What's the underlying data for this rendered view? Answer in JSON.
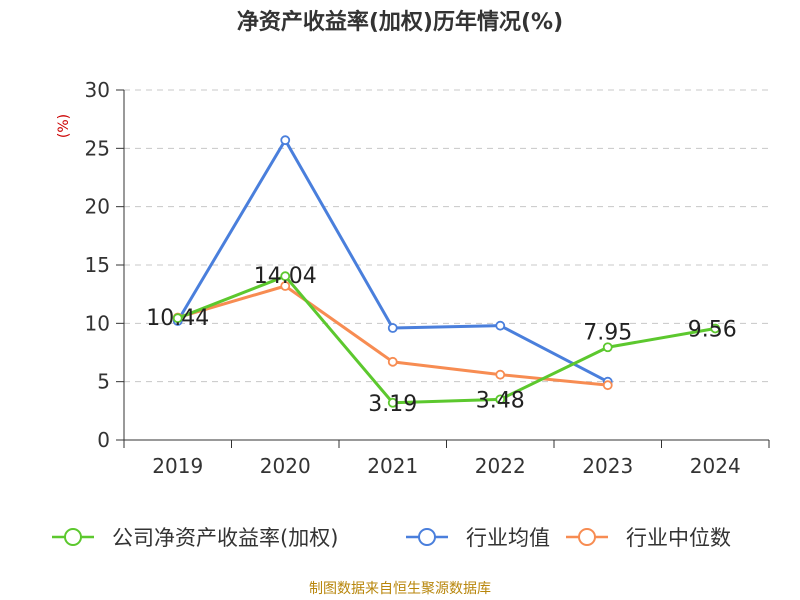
{
  "title": "净资产收益率(加权)历年情况(%)",
  "source": "制图数据来自恒生聚源数据库",
  "colors": {
    "company": "#5cc82e",
    "industry_avg": "#4a7fdc",
    "industry_median": "#f78c52",
    "y_unit": "#cc0000",
    "source": "#b8860b"
  },
  "chart_data": {
    "type": "line",
    "title": "净资产收益率(加权)历年情况(%)",
    "ylabel": "(%)",
    "xlabel": "",
    "categories": [
      "2019",
      "2020",
      "2021",
      "2022",
      "2023",
      "2024"
    ],
    "ylim": [
      0,
      30
    ],
    "yticks": [
      0,
      5,
      10,
      15,
      20,
      25,
      30
    ],
    "grid": true,
    "legend_position": "bottom",
    "series": [
      {
        "name": "公司净资产收益率(加权)",
        "values": [
          10.44,
          14.04,
          3.19,
          3.48,
          7.95,
          9.56
        ],
        "labels": [
          "10.44",
          "14.04",
          "3.19",
          "3.48",
          "7.95",
          "9.56"
        ]
      },
      {
        "name": "行业均值",
        "values": [
          10.2,
          25.7,
          9.6,
          9.8,
          5.0,
          null
        ]
      },
      {
        "name": "行业中位数",
        "values": [
          10.5,
          13.2,
          6.7,
          5.6,
          4.7,
          null
        ]
      }
    ]
  }
}
